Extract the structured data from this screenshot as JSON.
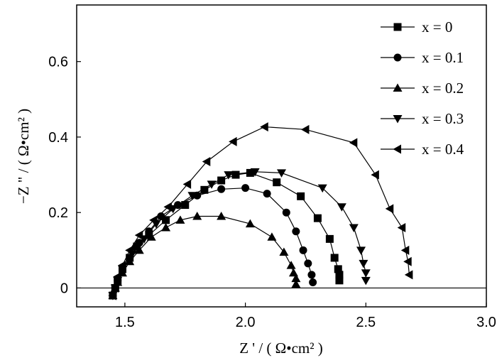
{
  "chart_data": {
    "type": "scatter",
    "xlabel": "Z ' / ( Ω•cm² )",
    "ylabel": "−Z \" / ( Ω•cm² )",
    "xlim": [
      1.3,
      3.0
    ],
    "ylim": [
      -0.05,
      0.75
    ],
    "xticks": [
      "1.5",
      "2.0",
      "2.5",
      "3.0"
    ],
    "yticks": [
      "0",
      "0.2",
      "0.4",
      "0.6"
    ],
    "xtick_values": [
      1.5,
      2.0,
      2.5,
      3.0
    ],
    "ytick_values": [
      0,
      0.2,
      0.4,
      0.6
    ],
    "grid": false,
    "legend_position": "top-right",
    "series": [
      {
        "name": "x = 0",
        "marker": "square",
        "points": [
          [
            1.45,
            -0.02
          ],
          [
            1.46,
            0.0
          ],
          [
            1.47,
            0.02
          ],
          [
            1.49,
            0.05
          ],
          [
            1.52,
            0.08
          ],
          [
            1.55,
            0.11
          ],
          [
            1.6,
            0.14
          ],
          [
            1.67,
            0.18
          ],
          [
            1.75,
            0.22
          ],
          [
            1.83,
            0.26
          ],
          [
            1.9,
            0.285
          ],
          [
            1.96,
            0.3
          ],
          [
            2.02,
            0.305
          ],
          [
            2.13,
            0.28
          ],
          [
            2.23,
            0.243
          ],
          [
            2.3,
            0.185
          ],
          [
            2.35,
            0.13
          ],
          [
            2.37,
            0.08
          ],
          [
            2.385,
            0.05
          ],
          [
            2.39,
            0.035
          ],
          [
            2.39,
            0.02
          ]
        ]
      },
      {
        "name": "x = 0.1",
        "marker": "circle",
        "points": [
          [
            1.45,
            -0.02
          ],
          [
            1.46,
            0.0
          ],
          [
            1.47,
            0.02
          ],
          [
            1.49,
            0.05
          ],
          [
            1.52,
            0.08
          ],
          [
            1.56,
            0.12
          ],
          [
            1.6,
            0.15
          ],
          [
            1.65,
            0.19
          ],
          [
            1.72,
            0.22
          ],
          [
            1.8,
            0.245
          ],
          [
            1.9,
            0.262
          ],
          [
            2.0,
            0.265
          ],
          [
            2.09,
            0.25
          ],
          [
            2.17,
            0.2
          ],
          [
            2.21,
            0.15
          ],
          [
            2.24,
            0.1
          ],
          [
            2.26,
            0.065
          ],
          [
            2.275,
            0.035
          ],
          [
            2.28,
            0.015
          ]
        ]
      },
      {
        "name": "x = 0.2",
        "marker": "triangle-up",
        "points": [
          [
            1.45,
            -0.02
          ],
          [
            1.46,
            0.0
          ],
          [
            1.47,
            0.015
          ],
          [
            1.49,
            0.04
          ],
          [
            1.52,
            0.07
          ],
          [
            1.56,
            0.1
          ],
          [
            1.61,
            0.135
          ],
          [
            1.67,
            0.16
          ],
          [
            1.73,
            0.18
          ],
          [
            1.8,
            0.19
          ],
          [
            1.9,
            0.19
          ],
          [
            2.02,
            0.17
          ],
          [
            2.11,
            0.135
          ],
          [
            2.16,
            0.095
          ],
          [
            2.19,
            0.06
          ],
          [
            2.2,
            0.04
          ],
          [
            2.21,
            0.025
          ],
          [
            2.21,
            0.01
          ]
        ]
      },
      {
        "name": "x = 0.3",
        "marker": "triangle-down",
        "points": [
          [
            1.45,
            -0.02
          ],
          [
            1.46,
            0.0
          ],
          [
            1.47,
            0.02
          ],
          [
            1.49,
            0.05
          ],
          [
            1.53,
            0.09
          ],
          [
            1.58,
            0.13
          ],
          [
            1.63,
            0.17
          ],
          [
            1.7,
            0.21
          ],
          [
            1.78,
            0.245
          ],
          [
            1.86,
            0.275
          ],
          [
            1.93,
            0.3
          ],
          [
            2.04,
            0.308
          ],
          [
            2.15,
            0.305
          ],
          [
            2.32,
            0.265
          ],
          [
            2.4,
            0.215
          ],
          [
            2.45,
            0.16
          ],
          [
            2.48,
            0.1
          ],
          [
            2.49,
            0.065
          ],
          [
            2.5,
            0.04
          ],
          [
            2.5,
            0.02
          ]
        ]
      },
      {
        "name": "x = 0.4",
        "marker": "triangle-left",
        "points": [
          [
            1.45,
            -0.02
          ],
          [
            1.46,
            0.0
          ],
          [
            1.47,
            0.03
          ],
          [
            1.49,
            0.06
          ],
          [
            1.52,
            0.1
          ],
          [
            1.56,
            0.14
          ],
          [
            1.62,
            0.18
          ],
          [
            1.68,
            0.215
          ],
          [
            1.76,
            0.275
          ],
          [
            1.84,
            0.335
          ],
          [
            1.95,
            0.388
          ],
          [
            2.08,
            0.427
          ],
          [
            2.25,
            0.42
          ],
          [
            2.45,
            0.385
          ],
          [
            2.54,
            0.3
          ],
          [
            2.6,
            0.21
          ],
          [
            2.65,
            0.16
          ],
          [
            2.665,
            0.1
          ],
          [
            2.675,
            0.07
          ],
          [
            2.68,
            0.035
          ]
        ]
      }
    ]
  }
}
